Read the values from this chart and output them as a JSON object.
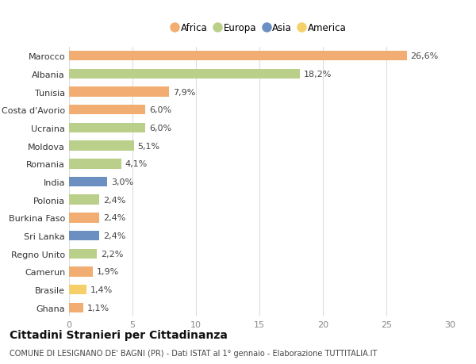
{
  "categories": [
    "Marocco",
    "Albania",
    "Tunisia",
    "Costa d'Avorio",
    "Ucraina",
    "Moldova",
    "Romania",
    "India",
    "Polonia",
    "Burkina Faso",
    "Sri Lanka",
    "Regno Unito",
    "Camerun",
    "Brasile",
    "Ghana"
  ],
  "values": [
    26.6,
    18.2,
    7.9,
    6.0,
    6.0,
    5.1,
    4.1,
    3.0,
    2.4,
    2.4,
    2.4,
    2.2,
    1.9,
    1.4,
    1.1
  ],
  "labels": [
    "26,6%",
    "18,2%",
    "7,9%",
    "6,0%",
    "6,0%",
    "5,1%",
    "4,1%",
    "3,0%",
    "2,4%",
    "2,4%",
    "2,4%",
    "2,2%",
    "1,9%",
    "1,4%",
    "1,1%"
  ],
  "continents": [
    "Africa",
    "Europa",
    "Africa",
    "Africa",
    "Europa",
    "Europa",
    "Europa",
    "Asia",
    "Europa",
    "Africa",
    "Asia",
    "Europa",
    "Africa",
    "America",
    "Africa"
  ],
  "continent_colors": {
    "Africa": "#F2AE72",
    "Europa": "#BACF8A",
    "Asia": "#6A8FC0",
    "America": "#F5D06A"
  },
  "legend_order": [
    "Africa",
    "Europa",
    "Asia",
    "America"
  ],
  "title": "Cittadini Stranieri per Cittadinanza",
  "subtitle": "COMUNE DI LESIGNANO DE' BAGNI (PR) - Dati ISTAT al 1° gennaio - Elaborazione TUTTITALIA.IT",
  "xlim": [
    0,
    30
  ],
  "xticks": [
    0,
    5,
    10,
    15,
    20,
    25,
    30
  ],
  "bg_color": "#ffffff",
  "grid_color": "#dddddd",
  "bar_height": 0.55,
  "label_fontsize": 8,
  "tick_fontsize": 8,
  "title_fontsize": 10,
  "subtitle_fontsize": 7
}
